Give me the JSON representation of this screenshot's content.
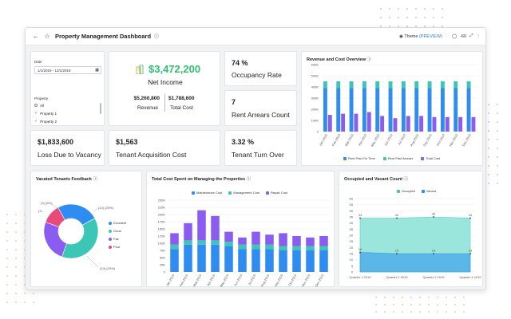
{
  "header": {
    "back_icon": "arrow-left-icon",
    "star_icon": "star-icon",
    "title": "Property Management Dashboard",
    "info_icon": "info-icon",
    "theme_label": "Theme",
    "theme_preview": "(PREVIEW)",
    "zoom_value": "-60"
  },
  "filters": {
    "date_label": "Date",
    "date_value": "1/1/2019 - 12/1/2019",
    "property_label": "Property",
    "property_options": [
      {
        "label": "All",
        "checked": false
      },
      {
        "label": "Property 1",
        "checked": true
      },
      {
        "label": "Property 2",
        "checked": true
      }
    ]
  },
  "net_income": {
    "value": "$3,472,200",
    "label": "Net Income",
    "revenue_value": "$5,260,800",
    "revenue_label": "Revenue",
    "cost_value": "$1,788,600",
    "cost_label": "Total Cost"
  },
  "kpis": {
    "occupancy_value": "74 %",
    "occupancy_label": "Occupancy Rate",
    "arrears_value": "7",
    "arrears_label": "Rent Arrears Count",
    "vacancy_loss_value": "$1,833,600",
    "vacancy_loss_label": "Loss Due to Vacancy",
    "acquisition_value": "$1,563",
    "acquisition_label": "Tenant Acquisition Cost",
    "turnover_value": "3.32 %",
    "turnover_label": "Tenant Turn Over"
  },
  "colors": {
    "blue": "#2f8cf0",
    "teal": "#3cc6b5",
    "purple": "#8a5cf0",
    "pink": "#e84a7a",
    "green_value": "#2fbf71",
    "vacant_fill": "#5bb7e8",
    "occupied_fill": "#9ae6dc"
  },
  "chart_data": [
    {
      "type": "bar",
      "title": "Revenue and Cost Overview",
      "categories": [
        "Jan 2019",
        "Feb 2019",
        "Mar 2019",
        "Apr 2019",
        "May 2019",
        "Jun 2019",
        "Jul 2019",
        "Aug 2019",
        "Sep 2019",
        "Oct 2019",
        "Nov 2019",
        "Dec 2019"
      ],
      "ylim": [
        0,
        600000
      ],
      "yticks": [
        "0",
        "100K",
        "200K",
        "300K",
        "400K",
        "500K",
        "600K"
      ],
      "series": [
        {
          "name": "Rent Paid On Time",
          "values": [
            390000,
            390000,
            390000,
            390000,
            390000,
            390000,
            390000,
            390000,
            390000,
            390000,
            390000,
            390000
          ]
        },
        {
          "name": "Rent Paid Arrears",
          "values": [
            60000,
            60000,
            60000,
            60000,
            60000,
            60000,
            60000,
            60000,
            60000,
            60000,
            60000,
            60000
          ]
        },
        {
          "name": "Total Cost",
          "values": [
            150000,
            160000,
            160000,
            175000,
            140000,
            120000,
            140000,
            140000,
            130000,
            130000,
            130000,
            130000
          ]
        }
      ]
    },
    {
      "type": "pie",
      "title": "Vacated Tenants Feedback",
      "slices": [
        {
          "name": "Excellent",
          "value": 13,
          "label": "(13) 25%"
        },
        {
          "name": "Good",
          "value": 20,
          "label": "(20)"
        },
        {
          "name": "Fair",
          "value": 13,
          "label": "(13) 29%"
        },
        {
          "name": "Poor",
          "value": 6,
          "label": "(6) ..."
        }
      ],
      "outer_labels": [
        "(3) (6%)",
        "(13) (25%)",
        "(13) (29%)",
        "(3... "
      ],
      "legend": [
        "Excellent",
        "Good",
        "Fair",
        "Poor"
      ]
    },
    {
      "type": "bar",
      "title": "Total Cost Spent on Managing the Properties",
      "categories": [
        "Jan 2019",
        "Feb 2019",
        "Mar 2019",
        "Apr 2019",
        "May 2019",
        "Jun 2019",
        "Jul 2019",
        "Aug 2019",
        "Sep 2019",
        "Oct 2019",
        "Nov 2019",
        "Dec 2019"
      ],
      "ylim": [
        0,
        250000
      ],
      "yticks": [
        "0",
        "25K",
        "50K",
        "75K",
        "100K",
        "125K",
        "150K",
        "175K",
        "200K",
        "225K",
        "250K"
      ],
      "series": [
        {
          "name": "Maintenance Cost",
          "values": [
            80000,
            95000,
            95000,
            95000,
            90000,
            80000,
            80000,
            80000,
            75000,
            75000,
            75000,
            75000
          ]
        },
        {
          "name": "Management Cost",
          "values": [
            15000,
            15000,
            15000,
            15000,
            15000,
            15000,
            15000,
            15000,
            15000,
            15000,
            15000,
            15000
          ]
        },
        {
          "name": "Repair Cost",
          "values": [
            40000,
            60000,
            105000,
            85000,
            35000,
            25000,
            45000,
            35000,
            45000,
            35000,
            30000,
            35000
          ]
        }
      ]
    },
    {
      "type": "area",
      "title": "Occupied and Vacant Count",
      "categories": [
        "Quarter 1 2019",
        "Quarter 2 2019",
        "Quarter 3 2019",
        "Quarter 4 2019"
      ],
      "ylim": [
        0,
        60
      ],
      "yticks": [
        "0",
        "5",
        "10",
        "15",
        "20",
        "25",
        "30",
        "35",
        "40",
        "45",
        "50",
        "55",
        "60"
      ],
      "series": [
        {
          "name": "Occupied",
          "values": [
            44,
            44,
            45,
            44
          ]
        },
        {
          "name": "Vacant",
          "values": [
            16,
            15,
            15,
            15
          ]
        }
      ]
    }
  ]
}
